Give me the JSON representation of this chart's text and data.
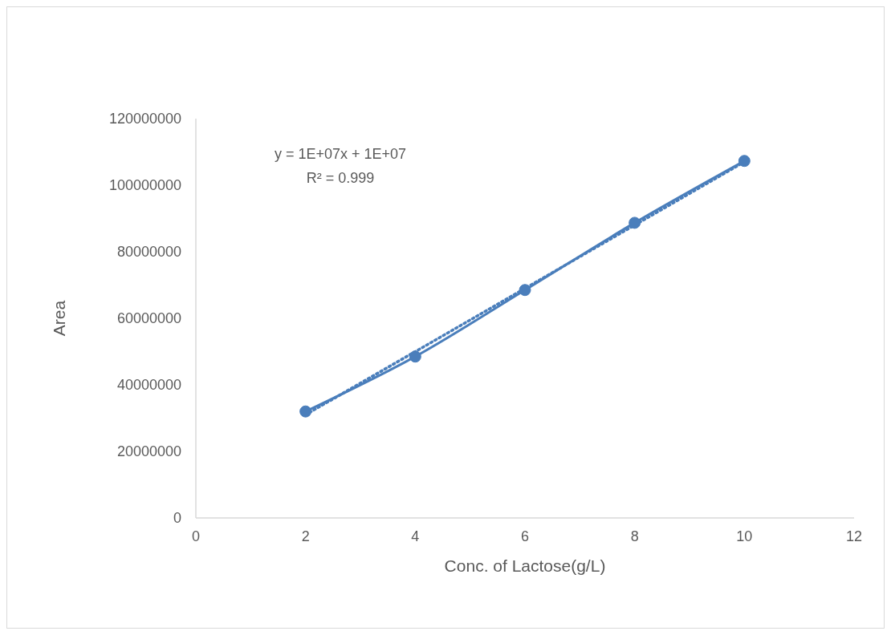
{
  "chart_data": {
    "type": "line",
    "xlabel": "Conc. of Lactose(g/L)",
    "ylabel": "Area",
    "x": [
      2,
      4,
      6,
      8,
      10
    ],
    "series": [
      {
        "color": "#4a7ebb",
        "values": [
          32000000,
          48500000,
          68500000,
          88700000,
          107300000
        ]
      },
      {
        "type": "line",
        "x": [
          2,
          10
        ],
        "values": [
          31000000,
          107000000
        ],
        "color": "#4a7ebb",
        "line_style": "dotted",
        "marker": "none"
      }
    ],
    "xlim": [
      0,
      12
    ],
    "xticks": [
      0,
      2,
      4,
      6,
      8,
      10,
      12
    ],
    "ylim": [
      0,
      120000000
    ],
    "yticks": [
      0,
      20000000,
      40000000,
      60000000,
      80000000,
      100000000,
      120000000
    ],
    "grid": false,
    "marker": "circle",
    "annotations": [
      "y = 1E+07x + 1E+07",
      "R² = 0.999"
    ]
  }
}
